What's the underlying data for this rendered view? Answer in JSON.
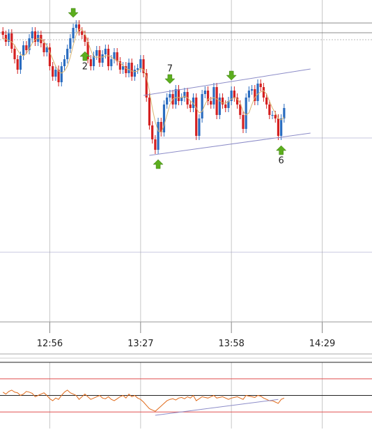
{
  "chart_data": {
    "type": "candlestick",
    "colors": {
      "up": "#2a6cc0",
      "down": "#d42020",
      "ma": "#d8b470",
      "trend": "#8c8cc8",
      "level": "#666",
      "grid": "#c8c8c8",
      "osc": "#e06a1a",
      "osc_band": "#e05050",
      "signal": "#5cae1e"
    },
    "xlim": [
      "12:39",
      "14:46"
    ],
    "xticks": [
      "12:56",
      "13:27",
      "13:58",
      "14:29"
    ],
    "ylim": [
      0,
      460
    ],
    "ygrid": [
      98,
      262
    ],
    "levels": [
      427,
      413
    ],
    "dashed_levels": [
      403
    ],
    "x": [
      "12:40",
      "12:41",
      "12:42",
      "12:43",
      "12:44",
      "12:45",
      "12:46",
      "12:47",
      "12:48",
      "12:49",
      "12:50",
      "12:51",
      "12:52",
      "12:53",
      "12:54",
      "12:55",
      "12:56",
      "12:57",
      "12:58",
      "12:59",
      "13:00",
      "13:01",
      "13:02",
      "13:03",
      "13:04",
      "13:05",
      "13:06",
      "13:07",
      "13:08",
      "13:09",
      "13:10",
      "13:11",
      "13:12",
      "13:13",
      "13:14",
      "13:15",
      "13:16",
      "13:17",
      "13:18",
      "13:19",
      "13:20",
      "13:21",
      "13:22",
      "13:23",
      "13:24",
      "13:25",
      "13:26",
      "13:27",
      "13:28",
      "13:29",
      "13:30",
      "13:31",
      "13:32",
      "13:33",
      "13:34",
      "13:35",
      "13:36",
      "13:37",
      "13:38",
      "13:39",
      "13:40",
      "13:41",
      "13:42",
      "13:43",
      "13:44",
      "13:45",
      "13:46",
      "13:47",
      "13:48",
      "13:49",
      "13:50",
      "13:51",
      "13:52",
      "13:53",
      "13:54",
      "13:55",
      "13:56",
      "13:57",
      "13:58",
      "13:59",
      "14:00",
      "14:01",
      "14:02",
      "14:03",
      "14:04",
      "14:05",
      "14:06",
      "14:07",
      "14:08",
      "14:09",
      "14:10",
      "14:11",
      "14:12",
      "14:13",
      "14:14",
      "14:15",
      "14:16"
    ],
    "ohlc": [
      [
        415,
        421,
        404,
        410
      ],
      [
        410,
        416,
        394,
        400
      ],
      [
        400,
        418,
        394,
        412
      ],
      [
        412,
        418,
        384,
        390
      ],
      [
        390,
        396,
        369,
        375
      ],
      [
        375,
        381,
        354,
        360
      ],
      [
        360,
        386,
        354,
        380
      ],
      [
        380,
        401,
        374,
        395
      ],
      [
        395,
        401,
        382,
        388
      ],
      [
        388,
        411,
        382,
        405
      ],
      [
        405,
        421,
        399,
        415
      ],
      [
        415,
        421,
        394,
        400
      ],
      [
        400,
        416,
        394,
        410
      ],
      [
        410,
        416,
        392,
        398
      ],
      [
        398,
        404,
        379,
        385
      ],
      [
        385,
        398,
        379,
        392
      ],
      [
        392,
        398,
        359,
        365
      ],
      [
        365,
        371,
        344,
        350
      ],
      [
        350,
        366,
        344,
        360
      ],
      [
        360,
        366,
        336,
        342
      ],
      [
        342,
        371,
        336,
        365
      ],
      [
        365,
        381,
        359,
        375
      ],
      [
        375,
        396,
        369,
        390
      ],
      [
        390,
        411,
        384,
        405
      ],
      [
        405,
        426,
        399,
        420
      ],
      [
        420,
        431,
        414,
        425
      ],
      [
        425,
        431,
        409,
        415
      ],
      [
        415,
        421,
        404,
        410
      ],
      [
        410,
        416,
        394,
        400
      ],
      [
        400,
        406,
        369,
        375
      ],
      [
        375,
        381,
        359,
        365
      ],
      [
        365,
        386,
        359,
        380
      ],
      [
        380,
        394,
        374,
        388
      ],
      [
        388,
        394,
        364,
        370
      ],
      [
        370,
        388,
        364,
        382
      ],
      [
        382,
        396,
        376,
        390
      ],
      [
        390,
        396,
        359,
        365
      ],
      [
        365,
        381,
        359,
        375
      ],
      [
        375,
        391,
        369,
        385
      ],
      [
        385,
        391,
        366,
        372
      ],
      [
        372,
        378,
        354,
        360
      ],
      [
        360,
        371,
        354,
        365
      ],
      [
        365,
        371,
        349,
        355
      ],
      [
        355,
        376,
        349,
        370
      ],
      [
        370,
        376,
        344,
        350
      ],
      [
        350,
        366,
        344,
        360
      ],
      [
        360,
        368,
        354,
        362
      ],
      [
        362,
        381,
        356,
        375
      ],
      [
        375,
        381,
        349,
        355
      ],
      [
        355,
        361,
        314,
        320
      ],
      [
        320,
        326,
        274,
        280
      ],
      [
        280,
        286,
        254,
        260
      ],
      [
        260,
        266,
        239,
        245
      ],
      [
        245,
        291,
        239,
        285
      ],
      [
        285,
        291,
        264,
        270
      ],
      [
        270,
        316,
        264,
        310
      ],
      [
        310,
        326,
        304,
        320
      ],
      [
        320,
        331,
        314,
        325
      ],
      [
        325,
        331,
        304,
        310
      ],
      [
        310,
        338,
        304,
        332
      ],
      [
        332,
        338,
        309,
        315
      ],
      [
        315,
        326,
        309,
        320
      ],
      [
        320,
        334,
        314,
        328
      ],
      [
        328,
        334,
        304,
        310
      ],
      [
        310,
        316,
        299,
        305
      ],
      [
        305,
        326,
        299,
        320
      ],
      [
        320,
        326,
        259,
        265
      ],
      [
        265,
        296,
        259,
        290
      ],
      [
        290,
        331,
        284,
        325
      ],
      [
        325,
        336,
        319,
        330
      ],
      [
        330,
        336,
        309,
        315
      ],
      [
        315,
        321,
        304,
        310
      ],
      [
        310,
        341,
        304,
        335
      ],
      [
        335,
        341,
        289,
        295
      ],
      [
        295,
        326,
        289,
        320
      ],
      [
        320,
        326,
        304,
        310
      ],
      [
        310,
        316,
        299,
        305
      ],
      [
        305,
        321,
        299,
        315
      ],
      [
        315,
        336,
        309,
        330
      ],
      [
        330,
        336,
        314,
        320
      ],
      [
        320,
        326,
        304,
        310
      ],
      [
        310,
        316,
        289,
        295
      ],
      [
        295,
        301,
        269,
        275
      ],
      [
        275,
        326,
        269,
        320
      ],
      [
        320,
        336,
        314,
        330
      ],
      [
        330,
        338,
        324,
        332
      ],
      [
        332,
        338,
        309,
        315
      ],
      [
        315,
        346,
        309,
        340
      ],
      [
        340,
        346,
        329,
        335
      ],
      [
        335,
        341,
        314,
        320
      ],
      [
        320,
        326,
        304,
        310
      ],
      [
        310,
        316,
        289,
        295
      ],
      [
        295,
        301,
        289,
        295
      ],
      [
        295,
        301,
        284,
        290
      ],
      [
        290,
        296,
        259,
        265
      ],
      [
        265,
        296,
        259,
        290
      ],
      [
        290,
        311,
        284,
        305
      ]
    ],
    "ma": [
      405,
      404,
      402,
      400,
      395,
      388,
      382,
      380,
      383,
      390,
      398,
      403,
      405,
      404,
      400,
      395,
      385,
      375,
      365,
      358,
      355,
      358,
      365,
      378,
      395,
      410,
      418,
      418,
      412,
      400,
      388,
      378,
      378,
      378,
      378,
      380,
      380,
      378,
      375,
      373,
      370,
      366,
      362,
      360,
      358,
      357,
      358,
      362,
      360,
      350,
      330,
      305,
      285,
      272,
      270,
      280,
      295,
      310,
      318,
      320,
      320,
      320,
      322,
      320,
      315,
      312,
      305,
      298,
      300,
      310,
      318,
      318,
      320,
      318,
      315,
      312,
      312,
      314,
      318,
      320,
      318,
      312,
      300,
      295,
      298,
      310,
      320,
      325,
      328,
      330,
      325,
      315,
      305,
      298,
      290,
      288,
      292
    ],
    "trendlines": [
      {
        "x": [
          "13:28",
          "14:25"
        ],
        "values": [
          323,
          361
        ]
      },
      {
        "x": [
          "13:30",
          "14:25"
        ],
        "values": [
          237,
          269
        ]
      }
    ],
    "signals": [
      {
        "x": "13:04",
        "dir": "down"
      },
      {
        "x": "13:08",
        "dir": "up",
        "label": "2"
      },
      {
        "x": "13:37",
        "dir": "down",
        "label": "7"
      },
      {
        "x": "13:58",
        "dir": "down"
      },
      {
        "x": "13:33",
        "dir": "up"
      },
      {
        "x": "14:15",
        "dir": "up",
        "label": "6"
      }
    ],
    "oscillator": {
      "ylim": [
        0,
        100
      ],
      "levels": [
        75,
        50,
        25
      ],
      "values": [
        55,
        52,
        56,
        58,
        55,
        54,
        50,
        52,
        56,
        55,
        53,
        48,
        50,
        52,
        54,
        50,
        45,
        42,
        46,
        44,
        50,
        55,
        58,
        54,
        52,
        50,
        44,
        48,
        52,
        48,
        44,
        46,
        48,
        50,
        46,
        45,
        48,
        44,
        42,
        45,
        48,
        50,
        46,
        52,
        48,
        50,
        46,
        44,
        40,
        35,
        30,
        28,
        26,
        30,
        34,
        38,
        42,
        44,
        45,
        43,
        46,
        47,
        45,
        48,
        46,
        50,
        42,
        45,
        48,
        47,
        46,
        48,
        50,
        46,
        47,
        48,
        46,
        44,
        46,
        47,
        48,
        46,
        44,
        50,
        49,
        48,
        47,
        50,
        49,
        46,
        44,
        42,
        42,
        40,
        38,
        44,
        46
      ],
      "trendline": {
        "x": [
          "13:32",
          "14:14"
        ],
        "values": [
          20,
          44
        ]
      }
    }
  }
}
